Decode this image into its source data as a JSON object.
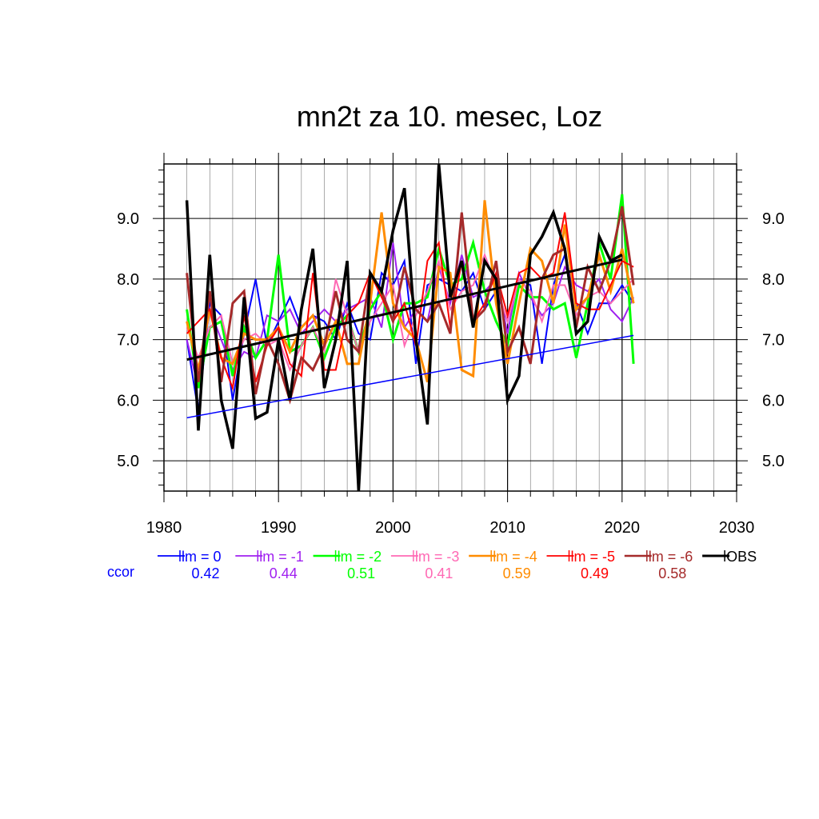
{
  "chart_data": {
    "type": "line",
    "title": "mn2t za 10. mesec, Loz",
    "xlim": [
      1980,
      2030
    ],
    "ylim": [
      4.5,
      9.9
    ],
    "x_ticks": [
      1980,
      1990,
      2000,
      2010,
      2020,
      2030
    ],
    "x_tick_labels": [
      "1980",
      "1990",
      "2000",
      "2010",
      "2020",
      "2030"
    ],
    "y_ticks": [
      5,
      6,
      7,
      8,
      9
    ],
    "y_tick_labels": [
      "5.0",
      "6.0",
      "7.0",
      "8.0",
      "9.0"
    ],
    "grid": true,
    "legend_placement": "bottom",
    "ccor_label": "ccor",
    "x": [
      1982,
      1983,
      1984,
      1985,
      1986,
      1987,
      1988,
      1989,
      1990,
      1991,
      1992,
      1993,
      1994,
      1995,
      1996,
      1997,
      1998,
      1999,
      2000,
      2001,
      2002,
      2003,
      2004,
      2005,
      2006,
      2007,
      2008,
      2009,
      2010,
      2011,
      2012,
      2013,
      2014,
      2015,
      2016,
      2017,
      2018,
      2019,
      2020,
      2021
    ],
    "series": [
      {
        "name": "lm = 0",
        "color": "#0000ff",
        "width": 2,
        "ccor": "0.42",
        "values": [
          7.0,
          5.8,
          7.6,
          7.4,
          6.0,
          7.1,
          8.0,
          6.9,
          7.3,
          7.7,
          7.2,
          7.4,
          7.3,
          7.0,
          7.6,
          7.1,
          7.0,
          8.1,
          7.9,
          8.3,
          6.6,
          7.9,
          8.0,
          7.9,
          7.8,
          8.1,
          7.5,
          7.8,
          7.3,
          8.0,
          7.9,
          6.6,
          7.9,
          8.4,
          7.6,
          7.1,
          7.6,
          7.6,
          7.9,
          7.6
        ],
        "trend": [
          5.71,
          7.07
        ]
      },
      {
        "name": "lm = -1",
        "color": "#a020f0",
        "width": 2,
        "ccor": "0.44",
        "values": [
          7.0,
          6.2,
          7.5,
          7.0,
          6.5,
          6.8,
          6.7,
          7.4,
          7.3,
          7.5,
          7.1,
          7.3,
          7.5,
          7.3,
          7.5,
          7.6,
          7.7,
          7.2,
          8.6,
          7.2,
          7.5,
          7.3,
          8.2,
          7.6,
          8.4,
          7.7,
          7.8,
          8.0,
          7.1,
          8.1,
          7.7,
          7.4,
          7.6,
          8.2,
          7.9,
          7.8,
          8.0,
          7.5,
          7.3,
          7.7
        ]
      },
      {
        "name": "lm = -2",
        "color": "#00ff00",
        "width": 3,
        "ccor": "0.51",
        "values": [
          7.5,
          6.2,
          7.2,
          7.3,
          6.4,
          7.2,
          6.7,
          7.0,
          8.4,
          6.8,
          6.9,
          7.2,
          6.7,
          7.2,
          7.4,
          6.8,
          7.5,
          7.8,
          7.0,
          7.6,
          7.6,
          7.7,
          8.5,
          7.9,
          8.0,
          8.6,
          7.8,
          7.3,
          6.9,
          7.9,
          7.7,
          7.7,
          7.5,
          7.6,
          6.7,
          7.6,
          8.6,
          8.0,
          9.4,
          6.6
        ]
      },
      {
        "name": "lm = -3",
        "color": "#ff69b4",
        "width": 2,
        "ccor": "0.41",
        "values": [
          7.2,
          6.7,
          7.2,
          7.4,
          6.6,
          7.0,
          7.1,
          6.9,
          7.0,
          6.5,
          6.9,
          7.2,
          6.8,
          8.0,
          7.4,
          6.8,
          7.3,
          7.6,
          7.9,
          6.9,
          7.4,
          7.8,
          8.3,
          7.5,
          7.8,
          7.9,
          8.4,
          7.9,
          7.3,
          8.0,
          7.8,
          7.3,
          7.9,
          7.9,
          7.4,
          7.7,
          7.8,
          7.6,
          7.8,
          8.0
        ]
      },
      {
        "name": "lm = -4",
        "color": "#ff8c00",
        "width": 3,
        "ccor": "0.59",
        "values": [
          7.3,
          6.5,
          7.5,
          6.7,
          6.6,
          7.1,
          7.0,
          7.0,
          7.2,
          6.8,
          7.2,
          7.4,
          6.9,
          7.3,
          6.6,
          6.6,
          7.6,
          9.1,
          7.6,
          7.2,
          7.0,
          6.3,
          8.2,
          8.1,
          6.5,
          6.4,
          9.3,
          7.6,
          6.6,
          7.6,
          8.5,
          8.3,
          7.6,
          8.9,
          7.5,
          7.7,
          8.4,
          7.8,
          8.5,
          7.6
        ]
      },
      {
        "name": "lm = -5",
        "color": "#ff0000",
        "width": 2,
        "ccor": "0.49",
        "values": [
          7.1,
          7.3,
          7.5,
          6.7,
          6.2,
          7.4,
          6.3,
          6.9,
          7.2,
          6.6,
          6.4,
          8.1,
          6.5,
          6.5,
          7.4,
          7.6,
          8.1,
          7.7,
          7.3,
          7.6,
          6.9,
          8.3,
          8.6,
          7.2,
          8.3,
          7.3,
          7.6,
          8.1,
          7.4,
          8.1,
          8.2,
          8.0,
          8.1,
          9.1,
          7.6,
          7.5,
          7.5,
          7.9,
          8.3,
          8.2
        ]
      },
      {
        "name": "lm = -6",
        "color": "#a52a2a",
        "width": 3,
        "ccor": "0.58",
        "values": [
          8.1,
          6.3,
          7.8,
          6.3,
          7.6,
          7.8,
          6.1,
          7.0,
          6.6,
          6.0,
          6.7,
          6.5,
          6.9,
          7.8,
          7.0,
          6.8,
          8.1,
          7.8,
          7.3,
          8.2,
          7.5,
          7.3,
          7.6,
          7.1,
          9.1,
          7.3,
          7.5,
          8.3,
          6.8,
          7.2,
          6.6,
          8.0,
          8.4,
          8.5,
          7.2,
          8.2,
          7.8,
          8.3,
          9.2,
          7.9
        ]
      },
      {
        "name": "OBS",
        "color": "#000000",
        "width": 3.5,
        "ccor": "",
        "values": [
          9.3,
          5.5,
          8.4,
          6.0,
          5.2,
          7.7,
          5.7,
          5.8,
          7.0,
          6.0,
          7.5,
          8.5,
          6.2,
          7.0,
          8.3,
          4.5,
          8.1,
          7.8,
          8.8,
          9.5,
          7.0,
          5.6,
          9.9,
          7.7,
          8.3,
          7.2,
          8.3,
          8.0,
          6.0,
          6.4,
          8.4,
          8.7,
          9.1,
          8.5,
          7.1,
          7.3,
          8.7,
          8.3,
          8.4,
          null
        ],
        "trend": [
          6.67,
          8.32
        ]
      }
    ]
  }
}
